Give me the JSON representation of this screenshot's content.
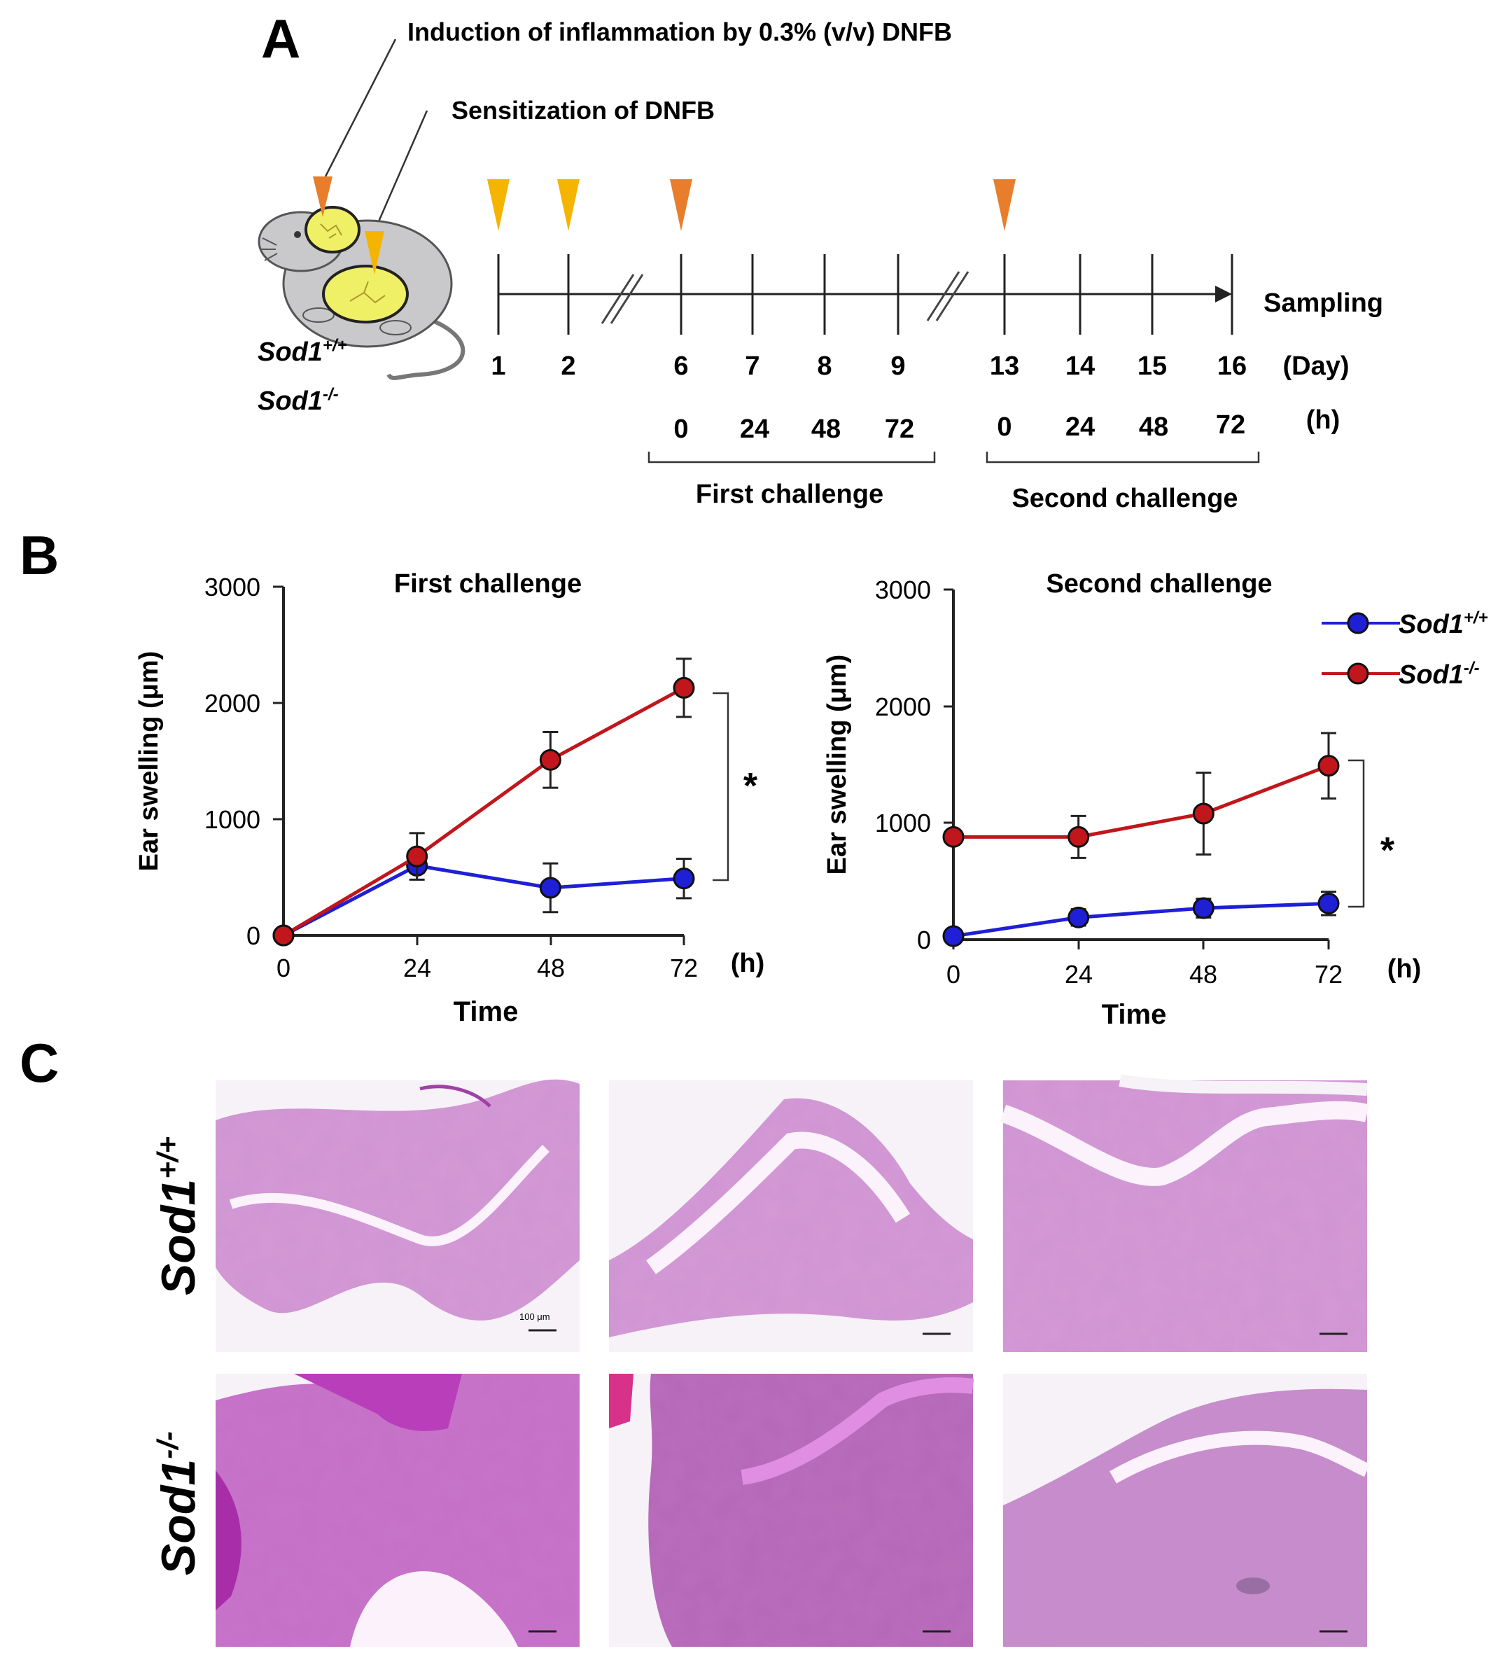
{
  "panel_a": {
    "label": "A",
    "annotation_induction": "Induction of inflammation by 0.3% (v/v) DNFB",
    "annotation_sensitization": "Sensitization of DNFB",
    "mouse_labels": [
      "Sod1",
      "Sod1"
    ],
    "mouse_label_sups": [
      "+/+",
      "-/-"
    ],
    "days": [
      "1",
      "2",
      "6",
      "7",
      "8",
      "9",
      "13",
      "14",
      "15",
      "16"
    ],
    "day_unit": "(Day)",
    "hours": [
      "0",
      "24",
      "48",
      "72",
      "0",
      "24",
      "48",
      "72"
    ],
    "hour_unit": "(h)",
    "sampling_label": "Sampling",
    "first_challenge_label": "First challenge",
    "second_challenge_label": "Second challenge",
    "colors": {
      "sensitization_marker": "#f5b400",
      "challenge_marker": "#e87e2c",
      "ear_fill": "#f0f067"
    }
  },
  "panel_b_label": "B",
  "chart_data": [
    {
      "type": "line",
      "title": "First challenge",
      "xlabel": "Time",
      "x_unit": "(h)",
      "ylabel": "Ear swelling (μm)",
      "x": [
        0,
        24,
        48,
        72
      ],
      "xlim": [
        0,
        72
      ],
      "ylim": [
        0,
        3000
      ],
      "yticks": [
        0,
        1000,
        2000,
        3000
      ],
      "series": [
        {
          "name": "Sod1+/+",
          "color": "#1f1fd6",
          "values": [
            0,
            600,
            410,
            490
          ],
          "errors": [
            0,
            60,
            210,
            170
          ]
        },
        {
          "name": "Sod1-/-",
          "color": "#c0161c",
          "values": [
            0,
            680,
            1510,
            2130
          ],
          "errors": [
            0,
            200,
            240,
            250
          ]
        }
      ],
      "significance": "*"
    },
    {
      "type": "line",
      "title": "Second challenge",
      "xlabel": "Time",
      "x_unit": "(h)",
      "ylabel": "Ear swelling (μm)",
      "x": [
        0,
        24,
        48,
        72
      ],
      "xlim": [
        0,
        72
      ],
      "ylim": [
        0,
        3000
      ],
      "yticks": [
        0,
        1000,
        2000,
        3000
      ],
      "series": [
        {
          "name": "Sod1+/+",
          "color": "#1f1fd6",
          "values": [
            30,
            190,
            270,
            310
          ],
          "errors": [
            0,
            70,
            80,
            100
          ]
        },
        {
          "name": "Sod1-/-",
          "color": "#c0161c",
          "values": [
            880,
            880,
            1080,
            1490
          ],
          "errors": [
            0,
            180,
            350,
            280
          ]
        }
      ],
      "significance": "*"
    }
  ],
  "legend": {
    "items": [
      {
        "label": "Sod1",
        "sup": "+/+",
        "color": "#1f1fd6"
      },
      {
        "label": "Sod1",
        "sup": "-/-",
        "color": "#c0161c"
      }
    ]
  },
  "panel_c": {
    "label": "C",
    "row_labels": [
      "Sod1",
      "Sod1"
    ],
    "row_label_sups": [
      "+/+",
      "-/-"
    ],
    "scale_bar": "100 μm",
    "colors": {
      "normal_tissue": "#d49ad6",
      "inflamed_tissue": "#c66fc8",
      "background": "#f6f2f8"
    }
  }
}
